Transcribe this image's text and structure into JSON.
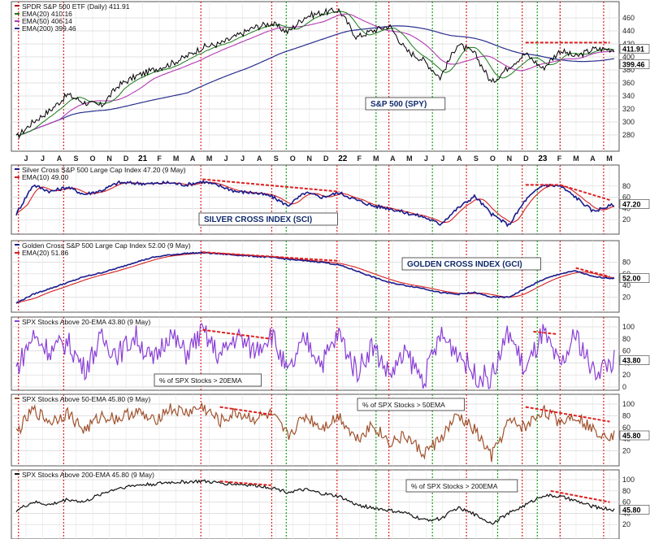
{
  "chart_data": [
    {
      "type": "line",
      "title": "SPDR S&P 500 ETF (Daily) 411.91",
      "legend": [
        {
          "label": "EMA(20) 410.16",
          "color": "#1a7a1a"
        },
        {
          "label": "EMA(50) 406.14",
          "color": "#b23ab2"
        },
        {
          "label": "EMA(200) 399.46",
          "color": "#2a2f8f"
        }
      ],
      "annotation": "S&P 500 (SPY)",
      "ylim": [
        260,
        470
      ],
      "yticks": [
        "460",
        "440",
        "420",
        "400",
        "380",
        "360",
        "340",
        "320",
        "300",
        "280"
      ],
      "last_labels": [
        "411.91",
        "399.46"
      ],
      "series": [
        {
          "name": "SPDR S&P 500 ETF",
          "color": "#b00000",
          "x": [
            "2020-06-01",
            "2020-07-01",
            "2020-08-01",
            "2020-09-01",
            "2020-10-01",
            "2020-11-01",
            "2020-12-01",
            "2021-01-01",
            "2021-02-01",
            "2021-03-01",
            "2021-04-01",
            "2021-05-01",
            "2021-06-01",
            "2021-07-01",
            "2021-08-01",
            "2021-09-01",
            "2021-10-01",
            "2021-11-01",
            "2021-12-01",
            "2022-01-01",
            "2022-02-01",
            "2022-03-01",
            "2022-04-01",
            "2022-05-01",
            "2022-06-01",
            "2022-07-01",
            "2022-08-01",
            "2022-09-01",
            "2022-10-01",
            "2022-11-01",
            "2022-12-01",
            "2023-01-01",
            "2023-02-01",
            "2023-03-01",
            "2023-04-01",
            "2023-05-09"
          ],
          "values": [
            276,
            300,
            318,
            342,
            330,
            325,
            356,
            370,
            380,
            388,
            400,
            415,
            420,
            432,
            445,
            452,
            438,
            462,
            468,
            472,
            430,
            440,
            448,
            410,
            395,
            368,
            420,
            405,
            360,
            385,
            405,
            382,
            410,
            400,
            412,
            412
          ]
        }
      ]
    },
    {
      "type": "line",
      "title": "Silver Cross S&P 500 Large Cap Index 47.20 (9 May)",
      "legend": [
        {
          "label": "EMA(10) 49.00",
          "color": "#d42020"
        }
      ],
      "annotation": "SILVER CROSS INDEX (SCI)",
      "ylim": [
        0,
        100
      ],
      "yticks": [
        "80",
        "60",
        "40",
        "20"
      ],
      "last_labels": [
        "47.20"
      ],
      "series": [
        {
          "name": "Silver Cross S&P 500 Large Cap Index",
          "color": "#1a1a8c",
          "x": [
            "2020-06-01",
            "2020-07-01",
            "2020-08-01",
            "2020-09-01",
            "2020-10-01",
            "2020-11-01",
            "2020-12-01",
            "2021-01-01",
            "2021-02-01",
            "2021-03-01",
            "2021-04-01",
            "2021-05-01",
            "2021-06-01",
            "2021-07-01",
            "2021-08-01",
            "2021-09-01",
            "2021-10-01",
            "2021-11-01",
            "2021-12-01",
            "2022-01-01",
            "2022-02-01",
            "2022-03-01",
            "2022-04-01",
            "2022-05-01",
            "2022-06-01",
            "2022-07-01",
            "2022-08-01",
            "2022-09-01",
            "2022-10-01",
            "2022-11-01",
            "2022-12-01",
            "2023-01-01",
            "2023-02-01",
            "2023-03-01",
            "2023-04-01",
            "2023-05-09"
          ],
          "values": [
            30,
            82,
            70,
            78,
            65,
            72,
            86,
            85,
            84,
            86,
            82,
            88,
            80,
            70,
            68,
            62,
            45,
            68,
            60,
            68,
            55,
            45,
            40,
            32,
            25,
            12,
            40,
            62,
            30,
            10,
            55,
            82,
            80,
            60,
            35,
            47
          ]
        }
      ]
    },
    {
      "type": "line",
      "title": "Golden Cross S&P 500 Large Cap Index 52.00 (9 May)",
      "legend": [
        {
          "label": "EMA(20) 51.86",
          "color": "#d42020"
        }
      ],
      "annotation": "GOLDEN CROSS INDEX (GCI)",
      "ylim": [
        0,
        100
      ],
      "yticks": [
        "80",
        "60",
        "40",
        "20"
      ],
      "last_labels": [
        "52.00"
      ],
      "series": [
        {
          "name": "Golden Cross S&P 500 Large Cap Index",
          "color": "#1a1a8c",
          "x": [
            "2020-06-01",
            "2020-07-01",
            "2020-08-01",
            "2020-09-01",
            "2020-10-01",
            "2020-11-01",
            "2020-12-01",
            "2021-01-01",
            "2021-02-01",
            "2021-03-01",
            "2021-04-01",
            "2021-05-01",
            "2021-06-01",
            "2021-07-01",
            "2021-08-01",
            "2021-09-01",
            "2021-10-01",
            "2021-11-01",
            "2021-12-01",
            "2022-01-01",
            "2022-02-01",
            "2022-03-01",
            "2022-04-01",
            "2022-05-01",
            "2022-06-01",
            "2022-07-01",
            "2022-08-01",
            "2022-09-01",
            "2022-10-01",
            "2022-11-01",
            "2022-12-01",
            "2023-01-01",
            "2023-02-01",
            "2023-03-01",
            "2023-04-01",
            "2023-05-09"
          ],
          "values": [
            10,
            25,
            35,
            45,
            55,
            62,
            70,
            80,
            88,
            92,
            95,
            96,
            94,
            92,
            90,
            88,
            85,
            82,
            80,
            75,
            65,
            55,
            45,
            40,
            35,
            28,
            25,
            28,
            20,
            20,
            35,
            50,
            60,
            65,
            55,
            52
          ]
        }
      ]
    },
    {
      "type": "line",
      "title": "SPX Stocks Above 20-EMA 43.80 (9 May)",
      "annotation": "% of SPX Stocks > 20EMA",
      "ylim": [
        0,
        100
      ],
      "yticks": [
        "100",
        "80",
        "60",
        "40",
        "20",
        "0"
      ],
      "last_labels": [
        "43.80"
      ],
      "series": [
        {
          "name": "SPX Stocks Above 20-EMA",
          "color": "#8a3fd6",
          "x": [
            "2020-06-01",
            "2020-07-01",
            "2020-08-01",
            "2020-09-01",
            "2020-10-01",
            "2020-11-01",
            "2020-12-01",
            "2021-01-01",
            "2021-02-01",
            "2021-03-01",
            "2021-04-01",
            "2021-05-01",
            "2021-06-01",
            "2021-07-01",
            "2021-08-01",
            "2021-09-01",
            "2021-10-01",
            "2021-11-01",
            "2021-12-01",
            "2022-01-01",
            "2022-02-01",
            "2022-03-01",
            "2022-04-01",
            "2022-05-01",
            "2022-06-01",
            "2022-07-01",
            "2022-08-01",
            "2022-09-01",
            "2022-10-01",
            "2022-11-01",
            "2022-12-01",
            "2023-01-01",
            "2023-02-01",
            "2023-03-01",
            "2023-04-01",
            "2023-05-09"
          ],
          "values": [
            30,
            85,
            60,
            75,
            30,
            80,
            55,
            85,
            40,
            90,
            55,
            92,
            50,
            85,
            60,
            90,
            20,
            80,
            40,
            88,
            25,
            70,
            20,
            55,
            10,
            85,
            60,
            20,
            15,
            92,
            25,
            90,
            30,
            88,
            25,
            44
          ]
        }
      ]
    },
    {
      "type": "line",
      "title": "SPX Stocks Above 50-EMA 45.80 (9 May)",
      "annotation": "% of SPX Stocks > 50EMA",
      "ylim": [
        0,
        100
      ],
      "yticks": [
        "100",
        "80",
        "60",
        "40",
        "20"
      ],
      "last_labels": [
        "45.80"
      ],
      "series": [
        {
          "name": "SPX Stocks Above 50-EMA",
          "color": "#a0522d",
          "x": [
            "2020-06-01",
            "2020-07-01",
            "2020-08-01",
            "2020-09-01",
            "2020-10-01",
            "2020-11-01",
            "2020-12-01",
            "2021-01-01",
            "2021-02-01",
            "2021-03-01",
            "2021-04-01",
            "2021-05-01",
            "2021-06-01",
            "2021-07-01",
            "2021-08-01",
            "2021-09-01",
            "2021-10-01",
            "2021-11-01",
            "2021-12-01",
            "2022-01-01",
            "2022-02-01",
            "2022-03-01",
            "2022-04-01",
            "2022-05-01",
            "2022-06-01",
            "2022-07-01",
            "2022-08-01",
            "2022-09-01",
            "2022-10-01",
            "2022-11-01",
            "2022-12-01",
            "2023-01-01",
            "2023-02-01",
            "2023-03-01",
            "2023-04-01",
            "2023-05-09"
          ],
          "values": [
            50,
            90,
            70,
            85,
            55,
            80,
            75,
            88,
            70,
            92,
            85,
            95,
            70,
            85,
            75,
            82,
            45,
            80,
            60,
            80,
            40,
            65,
            35,
            45,
            15,
            40,
            80,
            55,
            10,
            70,
            60,
            90,
            70,
            82,
            55,
            46
          ]
        }
      ]
    },
    {
      "type": "line",
      "title": "SPX Stocks Above 200-EMA 45.80 (9 May)",
      "annotation": "% of SPX Stocks > 200EMA",
      "ylim": [
        0,
        100
      ],
      "yticks": [
        "100",
        "80",
        "60",
        "40",
        "20"
      ],
      "last_labels": [
        "45.80"
      ],
      "series": [
        {
          "name": "SPX Stocks Above 200-EMA",
          "color": "#111111",
          "x": [
            "2020-06-01",
            "2020-07-01",
            "2020-08-01",
            "2020-09-01",
            "2020-10-01",
            "2020-11-01",
            "2020-12-01",
            "2021-01-01",
            "2021-02-01",
            "2021-03-01",
            "2021-04-01",
            "2021-05-01",
            "2021-06-01",
            "2021-07-01",
            "2021-08-01",
            "2021-09-01",
            "2021-10-01",
            "2021-11-01",
            "2021-12-01",
            "2022-01-01",
            "2022-02-01",
            "2022-03-01",
            "2022-04-01",
            "2022-05-01",
            "2022-06-01",
            "2022-07-01",
            "2022-08-01",
            "2022-09-01",
            "2022-10-01",
            "2022-11-01",
            "2022-12-01",
            "2023-01-01",
            "2023-02-01",
            "2023-03-01",
            "2023-04-01",
            "2023-05-09"
          ],
          "values": [
            45,
            60,
            55,
            65,
            60,
            75,
            85,
            90,
            92,
            95,
            96,
            97,
            94,
            92,
            90,
            86,
            78,
            82,
            75,
            70,
            55,
            50,
            45,
            40,
            28,
            30,
            50,
            38,
            22,
            40,
            55,
            72,
            70,
            62,
            52,
            46
          ]
        }
      ]
    }
  ],
  "x_axis": {
    "labels": [
      "J",
      "J",
      "A",
      "S",
      "O",
      "N",
      "D",
      "21",
      "F",
      "M",
      "A",
      "M",
      "J",
      "J",
      "A",
      "S",
      "O",
      "N",
      "D",
      "22",
      "F",
      "M",
      "A",
      "M",
      "J",
      "J",
      "A",
      "S",
      "O",
      "N",
      "D",
      "23",
      "F",
      "M",
      "A",
      "M"
    ],
    "bold": [
      "21",
      "22",
      "23"
    ]
  },
  "colors": {
    "red_marker": "#e02020",
    "green_marker": "#1aa01a",
    "grid": "#cccccc",
    "background": "#ffffff"
  }
}
